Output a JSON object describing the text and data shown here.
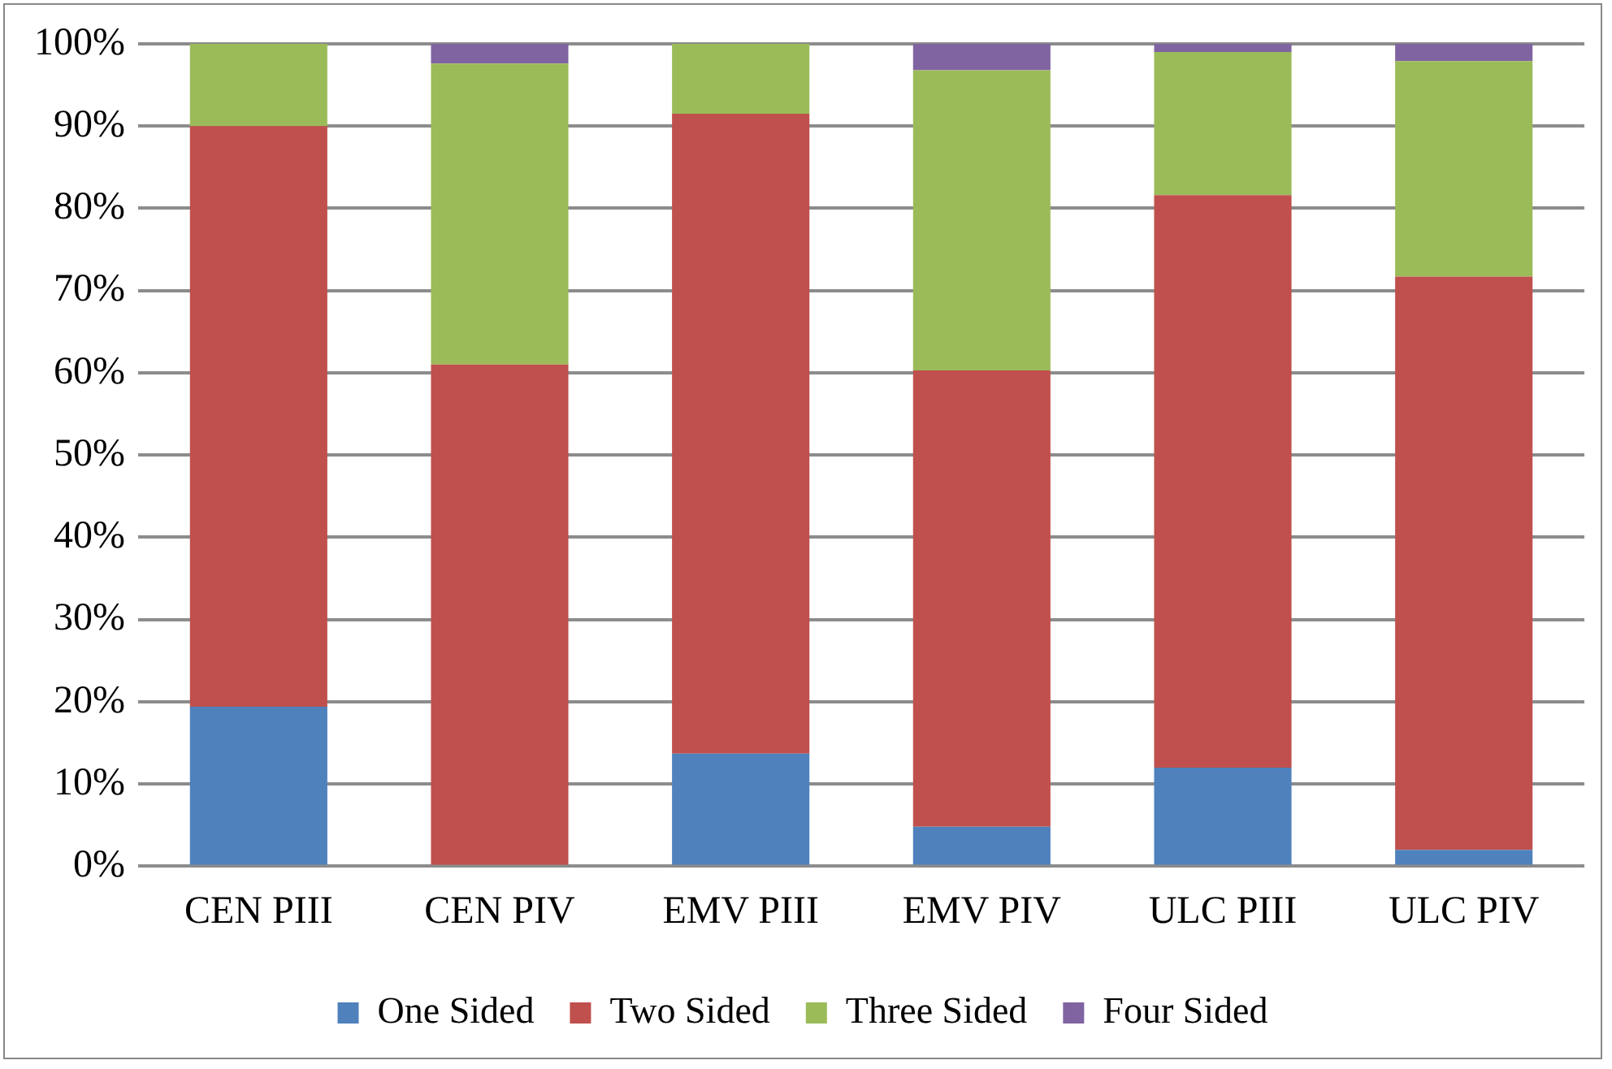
{
  "chart_data": {
    "type": "bar",
    "stacked": true,
    "categories": [
      "CEN PIII",
      "CEN PIV",
      "EMV PIII",
      "EMV PIV",
      "ULC PIII",
      "ULC PIV"
    ],
    "series": [
      {
        "name": "One Sided",
        "color": "#4f81bd",
        "values": [
          19.4,
          0,
          13.7,
          4.8,
          12.0,
          2.0
        ]
      },
      {
        "name": "Two Sided",
        "color": "#c0504d",
        "values": [
          70.6,
          61.0,
          77.8,
          55.5,
          69.6,
          69.7
        ]
      },
      {
        "name": "Three Sided",
        "color": "#9bbb59",
        "values": [
          10.0,
          36.6,
          8.5,
          36.5,
          17.4,
          26.2
        ]
      },
      {
        "name": "Four Sided",
        "color": "#8064a2",
        "values": [
          0,
          2.4,
          0,
          3.2,
          1.0,
          2.1
        ]
      }
    ],
    "ylim": [
      0,
      100
    ],
    "yticks": [
      {
        "value": 0,
        "label": "0%"
      },
      {
        "value": 10,
        "label": "10%"
      },
      {
        "value": 20,
        "label": "20%"
      },
      {
        "value": 30,
        "label": "30%"
      },
      {
        "value": 40,
        "label": "40%"
      },
      {
        "value": 50,
        "label": "50%"
      },
      {
        "value": 60,
        "label": "60%"
      },
      {
        "value": 70,
        "label": "70%"
      },
      {
        "value": 80,
        "label": "80%"
      },
      {
        "value": 90,
        "label": "90%"
      },
      {
        "value": 100,
        "label": "100%"
      }
    ],
    "grid": "y",
    "legend": "bottom"
  }
}
